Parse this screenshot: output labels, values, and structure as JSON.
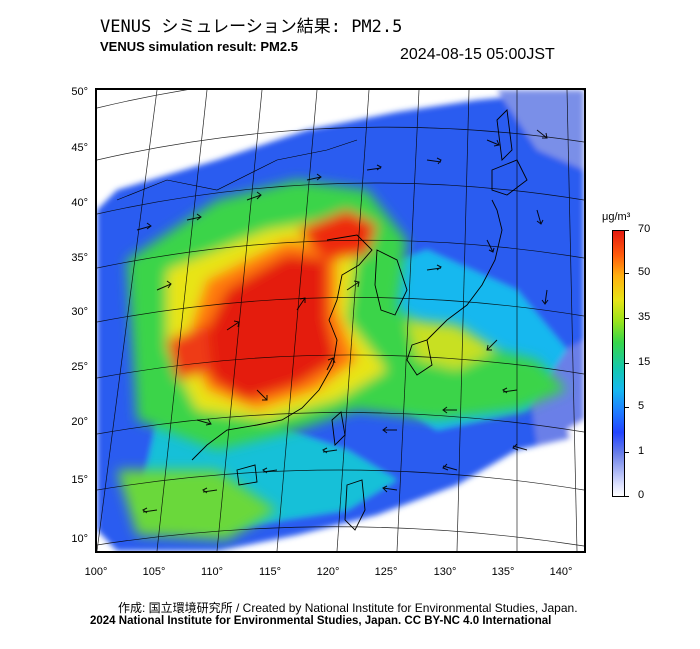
{
  "header": {
    "title_jp": "VENUS シミュレーション結果: PM2.5",
    "title_en": "VENUS simulation result: PM2.5",
    "timestamp": "2024-08-15 05:00JST"
  },
  "map": {
    "lat_labels": [
      "50°",
      "45°",
      "40°",
      "35°",
      "30°",
      "25°",
      "20°",
      "15°",
      "10°"
    ],
    "lon_labels": [
      "100°",
      "105°",
      "110°",
      "115°",
      "120°",
      "125°",
      "130°",
      "135°",
      "140°"
    ]
  },
  "colorbar": {
    "unit": "μg/m³",
    "ticks": [
      "70",
      "50",
      "35",
      "15",
      "5",
      "1",
      "0"
    ],
    "colors": {
      "high": "#e41a10",
      "mid_high": "#ff5a0c",
      "mid": "#e8e417",
      "low_mid": "#37d64a",
      "low": "#16b8f0",
      "very_low": "#2244ff",
      "zero": "#ffffff"
    }
  },
  "footer": {
    "credit_created": "作成: 国立環境研究所 / Created by National Institute for Environmental Studies, Japan.",
    "credit_copyright": "2024 National Institute for Environmental Studies, Japan. CC BY-NC 4.0 International"
  }
}
